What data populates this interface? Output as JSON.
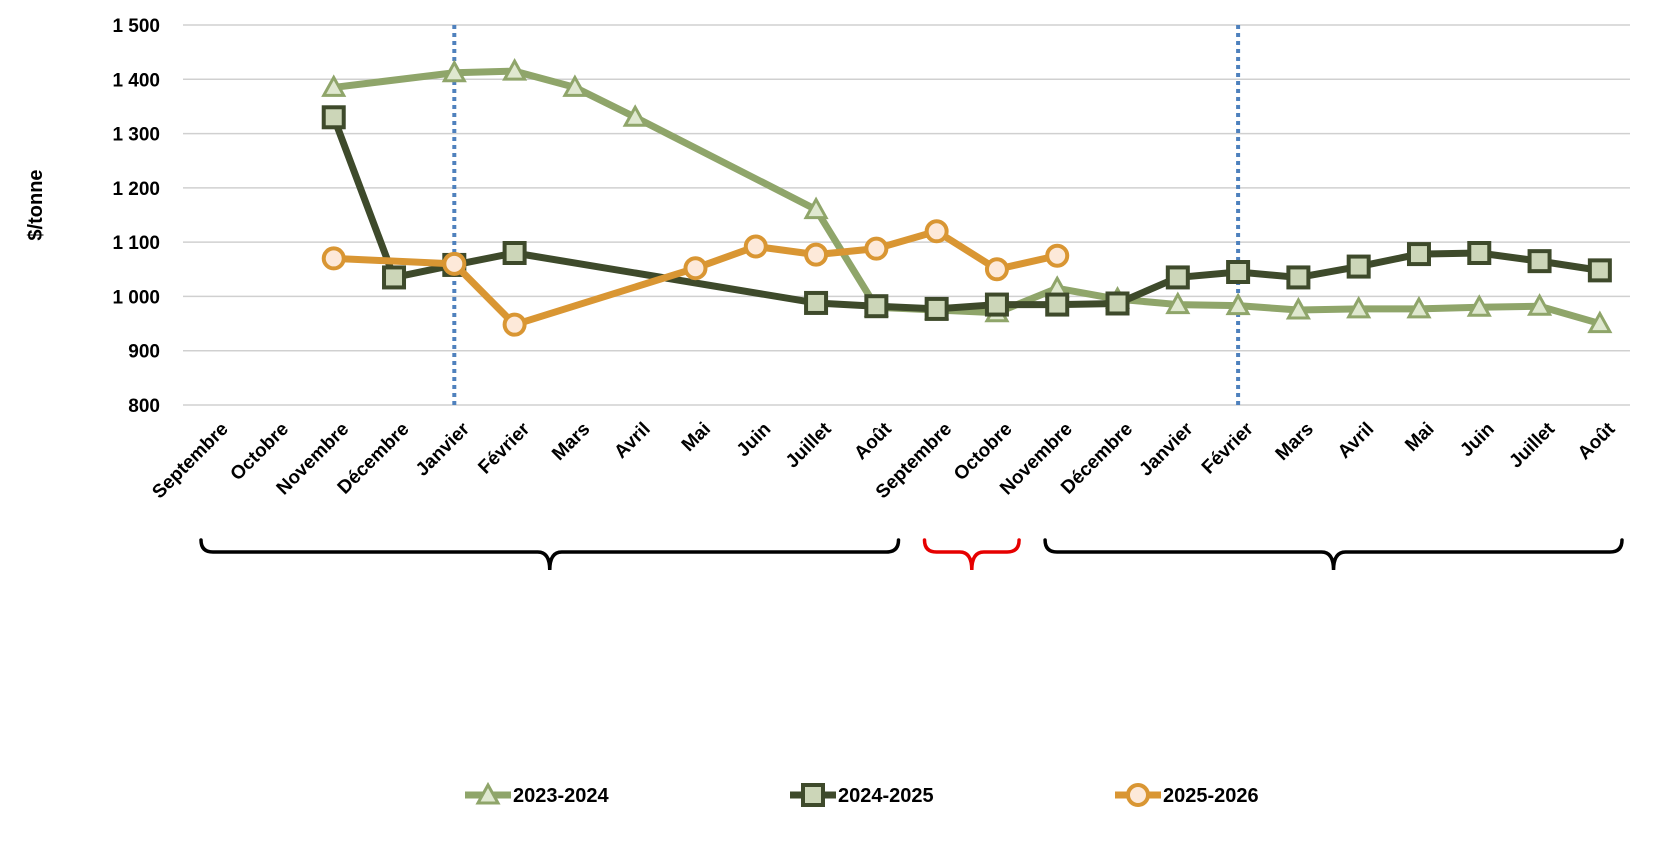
{
  "chart_data": {
    "type": "line",
    "ylabel": "$/tonne",
    "ylim": [
      800,
      1500
    ],
    "yticks": [
      800,
      900,
      1000,
      1100,
      1200,
      1300,
      1400,
      1500
    ],
    "ytick_labels": [
      "800",
      "900",
      "1 000",
      "1 100",
      "1 200",
      "1 300",
      "1 400",
      "1 500"
    ],
    "categories": [
      "Septembre",
      "Octobre",
      "Novembre",
      "Décembre",
      "Janvier",
      "Février",
      "Mars",
      "Avril",
      "Mai",
      "Juin",
      "Juillet",
      "Août",
      "Septembre",
      "Octobre",
      "Novembre",
      "Décembre",
      "Janvier",
      "Février",
      "Mars",
      "Avril",
      "Mai",
      "Juin",
      "Juillet",
      "Août"
    ],
    "grid": true,
    "legend_position": "bottom",
    "vertical_markers": [
      4,
      17
    ],
    "brace_groups": [
      {
        "from": 0,
        "to": 12,
        "color": "#000000"
      },
      {
        "from": 12,
        "to": 14,
        "color": "#e60000"
      },
      {
        "from": 14,
        "to": 24,
        "color": "#000000"
      }
    ],
    "series": [
      {
        "name": "2023-2024",
        "color": "#8fa56a",
        "marker": "triangle",
        "values": [
          null,
          null,
          1385,
          null,
          1412,
          1415,
          1385,
          1330,
          null,
          null,
          1160,
          980,
          975,
          970,
          1015,
          995,
          985,
          983,
          975,
          977,
          977,
          980,
          982,
          950
        ]
      },
      {
        "name": "2024-2025",
        "color": "#3e4a2b",
        "marker": "square",
        "values": [
          null,
          null,
          1330,
          1035,
          1058,
          1080,
          null,
          null,
          null,
          null,
          988,
          982,
          977,
          985,
          985,
          987,
          1035,
          1045,
          1035,
          1055,
          1078,
          1080,
          1065,
          1048
        ]
      },
      {
        "name": "2025-2026",
        "color": "#d99633",
        "marker": "circle",
        "values": [
          null,
          null,
          1070,
          null,
          1060,
          948,
          null,
          null,
          1052,
          1092,
          1077,
          1088,
          1120,
          1050,
          1075,
          null,
          null,
          null,
          null,
          null,
          null,
          null,
          null,
          null
        ]
      }
    ]
  }
}
